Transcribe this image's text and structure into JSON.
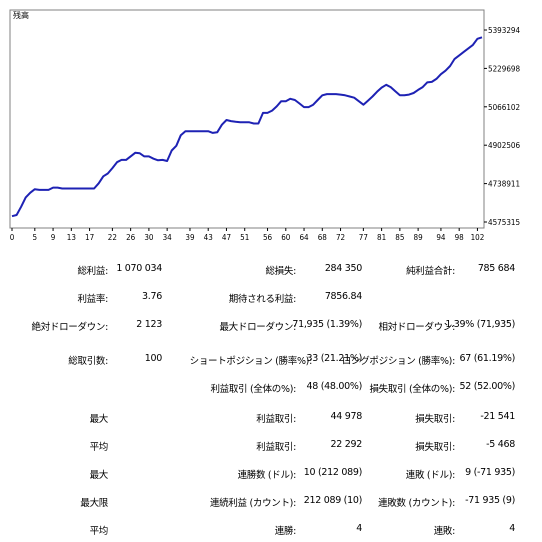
{
  "chart_data": {
    "type": "line",
    "title": "残高",
    "x_ticks": [
      "0",
      "5",
      "9",
      "13",
      "17",
      "22",
      "26",
      "30",
      "34",
      "39",
      "43",
      "47",
      "51",
      "56",
      "60",
      "64",
      "68",
      "72",
      "77",
      "81",
      "85",
      "89",
      "94",
      "98",
      "102"
    ],
    "y_ticks": [
      "5393294",
      "5229698",
      "5066102",
      "4902506",
      "4738911",
      "4575315"
    ],
    "ylim": [
      4575315,
      5393294
    ],
    "xlim": [
      0,
      103
    ],
    "series": [
      {
        "color": "#1e22b4",
        "x": [
          0,
          1,
          2,
          3,
          4,
          5,
          6,
          7,
          8,
          9,
          10,
          11,
          12,
          13,
          14,
          15,
          16,
          17,
          18,
          19,
          20,
          21,
          22,
          23,
          24,
          25,
          26,
          27,
          28,
          29,
          30,
          31,
          32,
          33,
          34,
          35,
          36,
          37,
          38,
          39,
          40,
          41,
          42,
          43,
          44,
          45,
          46,
          47,
          48,
          49,
          50,
          51,
          52,
          53,
          54,
          55,
          56,
          57,
          58,
          59,
          60,
          61,
          62,
          63,
          64,
          65,
          66,
          67,
          68,
          69,
          70,
          71,
          72,
          73,
          74,
          75,
          76,
          77,
          78,
          79,
          80,
          81,
          82,
          83,
          84,
          85,
          86,
          87,
          88,
          89,
          90,
          91,
          92,
          93,
          94,
          95,
          96,
          97,
          98,
          99,
          100,
          101,
          102,
          103
        ],
        "y": [
          4600000,
          4605000,
          4640000,
          4680000,
          4700000,
          4715000,
          4712000,
          4712000,
          4712000,
          4722000,
          4722000,
          4718000,
          4718000,
          4718000,
          4718000,
          4718000,
          4718000,
          4718000,
          4718000,
          4740000,
          4770000,
          4782000,
          4805000,
          4830000,
          4840000,
          4840000,
          4855000,
          4870000,
          4868000,
          4855000,
          4855000,
          4845000,
          4838000,
          4840000,
          4835000,
          4880000,
          4900000,
          4945000,
          4962000,
          4962000,
          4962000,
          4962000,
          4962000,
          4962000,
          4955000,
          4958000,
          4990000,
          5010000,
          5005000,
          5002000,
          5000000,
          5000000,
          5000000,
          4995000,
          4995000,
          5040000,
          5040000,
          5050000,
          5068000,
          5090000,
          5090000,
          5100000,
          5095000,
          5080000,
          5065000,
          5065000,
          5075000,
          5095000,
          5115000,
          5120000,
          5120000,
          5120000,
          5118000,
          5115000,
          5110000,
          5105000,
          5090000,
          5075000,
          5092000,
          5110000,
          5130000,
          5148000,
          5160000,
          5150000,
          5132000,
          5115000,
          5115000,
          5118000,
          5125000,
          5138000,
          5150000,
          5170000,
          5172000,
          5185000,
          5205000,
          5220000,
          5240000,
          5270000,
          5285000,
          5300000,
          5315000,
          5330000,
          5356000,
          5362000
        ]
      }
    ],
    "grid": false,
    "legend": "none"
  },
  "stats": {
    "r1": {
      "l1": "総利益:",
      "v1": "1 070 034",
      "l2": "総損失:",
      "v2": "284 350",
      "l3": "純利益合計:",
      "v3": "785 684"
    },
    "r2": {
      "l1": "利益率:",
      "v1": "3.76",
      "l2": "期待される利益:",
      "v2": "7856.84",
      "l3": "",
      "v3": ""
    },
    "r3": {
      "l1": "絶対ドローダウン:",
      "v1": "2 123",
      "l2": "最大ドローダウン:",
      "v2": "71,935 (1.39%)",
      "l3": "相対ドローダウン:",
      "v3": "1.39% (71,935)"
    },
    "r4": {
      "l1": "総取引数:",
      "v1": "100",
      "l2": "ショートポジション (勝率%):",
      "v2": "33 (21.21%)",
      "l3": "ロングポジション (勝率%):",
      "v3": "67 (61.19%)"
    },
    "r5": {
      "l1": "",
      "v1": "",
      "l2": "利益取引 (全体の%):",
      "v2": "48 (48.00%)",
      "l3": "損失取引 (全体の%):",
      "v3": "52 (52.00%)"
    },
    "r6": {
      "l1": "最大",
      "v1": "",
      "l2": "利益取引:",
      "v2": "44 978",
      "l3": "損失取引:",
      "v3": "-21 541"
    },
    "r7": {
      "l1": "平均",
      "v1": "",
      "l2": "利益取引:",
      "v2": "22 292",
      "l3": "損失取引:",
      "v3": "-5 468"
    },
    "r8": {
      "l1": "最大",
      "v1": "",
      "l2": "連勝数 (ドル):",
      "v2": "10 (212 089)",
      "l3": "連敗 (ドル):",
      "v3": "9 (-71 935)"
    },
    "r9": {
      "l1": "最大限",
      "v1": "",
      "l2": "連続利益 (カウント):",
      "v2": "212 089 (10)",
      "l3": "連敗数 (カウント):",
      "v3": "-71 935 (9)"
    },
    "r10": {
      "l1": "平均",
      "v1": "",
      "l2": "連勝:",
      "v2": "4",
      "l3": "連敗:",
      "v3": "4"
    }
  }
}
